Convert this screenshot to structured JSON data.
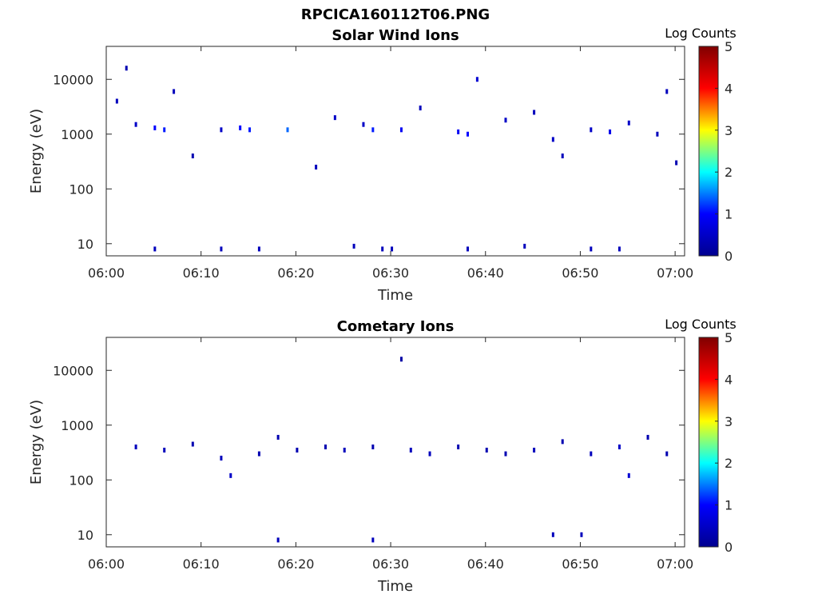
{
  "figure": {
    "title": "RPCICA160112T06.PNG"
  },
  "colors": {
    "axis": "#262626",
    "low_count": "#0000a0",
    "colormap": [
      "#00008f",
      "#0000ff",
      "#00ffff",
      "#ffff00",
      "#ff0000",
      "#800000"
    ]
  },
  "chart_data": [
    {
      "type": "heatmap",
      "title": "Solar Wind Ions",
      "xlabel": "Time",
      "ylabel": "Energy (eV)",
      "x_ticks": [
        "06:00",
        "06:10",
        "06:20",
        "06:30",
        "06:40",
        "06:50",
        "07:00"
      ],
      "y_ticks": [
        "10",
        "100",
        "1000",
        "10000"
      ],
      "y_scale": "log",
      "xlim": [
        "06:00",
        "07:01"
      ],
      "ylim": [
        6,
        40000
      ],
      "colorbar": {
        "label": "Log Counts",
        "ticks": [
          "0",
          "1",
          "2",
          "3",
          "4",
          "5"
        ],
        "range": [
          0,
          5
        ]
      },
      "points": [
        [
          "06:01",
          4000,
          0.4
        ],
        [
          "06:02",
          16000,
          0.3
        ],
        [
          "06:03",
          1500,
          0.5
        ],
        [
          "06:05",
          1300,
          1.0
        ],
        [
          "06:06",
          1200,
          1.1
        ],
        [
          "06:07",
          6000,
          0.4
        ],
        [
          "06:09",
          400,
          0.3
        ],
        [
          "06:12",
          1200,
          0.5
        ],
        [
          "06:14",
          1300,
          1.0
        ],
        [
          "06:15",
          1200,
          1.1
        ],
        [
          "06:19",
          1200,
          1.4
        ],
        [
          "06:22",
          250,
          0.4
        ],
        [
          "06:24",
          2000,
          0.5
        ],
        [
          "06:27",
          1500,
          0.5
        ],
        [
          "06:28",
          1200,
          1.1
        ],
        [
          "06:31",
          1200,
          0.9
        ],
        [
          "06:33",
          3000,
          0.4
        ],
        [
          "06:37",
          1100,
          0.9
        ],
        [
          "06:38",
          1000,
          1.0
        ],
        [
          "06:39",
          10000,
          0.6
        ],
        [
          "06:42",
          1800,
          0.5
        ],
        [
          "06:45",
          2500,
          0.4
        ],
        [
          "06:47",
          800,
          0.5
        ],
        [
          "06:48",
          400,
          0.4
        ],
        [
          "06:51",
          1200,
          0.5
        ],
        [
          "06:53",
          1100,
          0.8
        ],
        [
          "06:55",
          1600,
          0.5
        ],
        [
          "06:58",
          1000,
          0.4
        ],
        [
          "06:59",
          6000,
          0.4
        ],
        [
          "07:00",
          300,
          0.3
        ],
        [
          "06:05",
          8,
          0.4
        ],
        [
          "06:12",
          8,
          0.4
        ],
        [
          "06:16",
          8,
          0.4
        ],
        [
          "06:26",
          9,
          0.4
        ],
        [
          "06:29",
          8,
          0.4
        ],
        [
          "06:30",
          8,
          0.4
        ],
        [
          "06:38",
          8,
          0.4
        ],
        [
          "06:44",
          9,
          0.4
        ],
        [
          "06:51",
          8,
          0.4
        ],
        [
          "06:54",
          8,
          0.4
        ]
      ]
    },
    {
      "type": "heatmap",
      "title": "Cometary Ions",
      "xlabel": "Time",
      "ylabel": "Energy (eV)",
      "x_ticks": [
        "06:00",
        "06:10",
        "06:20",
        "06:30",
        "06:40",
        "06:50",
        "07:00"
      ],
      "y_ticks": [
        "10",
        "100",
        "1000",
        "10000"
      ],
      "y_scale": "log",
      "xlim": [
        "06:00",
        "07:01"
      ],
      "ylim": [
        6,
        40000
      ],
      "colorbar": {
        "label": "Log Counts",
        "ticks": [
          "0",
          "1",
          "2",
          "3",
          "4",
          "5"
        ],
        "range": [
          0,
          5
        ]
      },
      "points": [
        [
          "06:03",
          400,
          0.4
        ],
        [
          "06:06",
          350,
          0.4
        ],
        [
          "06:09",
          450,
          0.3
        ],
        [
          "06:12",
          250,
          0.4
        ],
        [
          "06:13",
          120,
          0.5
        ],
        [
          "06:16",
          300,
          0.3
        ],
        [
          "06:18",
          600,
          0.3
        ],
        [
          "06:20",
          350,
          0.3
        ],
        [
          "06:23",
          400,
          0.3
        ],
        [
          "06:25",
          350,
          0.4
        ],
        [
          "06:28",
          400,
          0.3
        ],
        [
          "06:31",
          16000,
          0.2
        ],
        [
          "06:32",
          350,
          0.4
        ],
        [
          "06:34",
          300,
          0.4
        ],
        [
          "06:37",
          400,
          0.3
        ],
        [
          "06:40",
          350,
          0.3
        ],
        [
          "06:42",
          300,
          0.3
        ],
        [
          "06:45",
          350,
          0.4
        ],
        [
          "06:48",
          500,
          0.3
        ],
        [
          "06:51",
          300,
          0.4
        ],
        [
          "06:54",
          400,
          0.5
        ],
        [
          "06:55",
          120,
          0.6
        ],
        [
          "06:57",
          600,
          0.3
        ],
        [
          "06:59",
          300,
          0.3
        ],
        [
          "06:18",
          8,
          0.4
        ],
        [
          "06:28",
          8,
          0.4
        ],
        [
          "06:47",
          10,
          0.4
        ],
        [
          "06:50",
          10,
          0.4
        ]
      ]
    }
  ]
}
